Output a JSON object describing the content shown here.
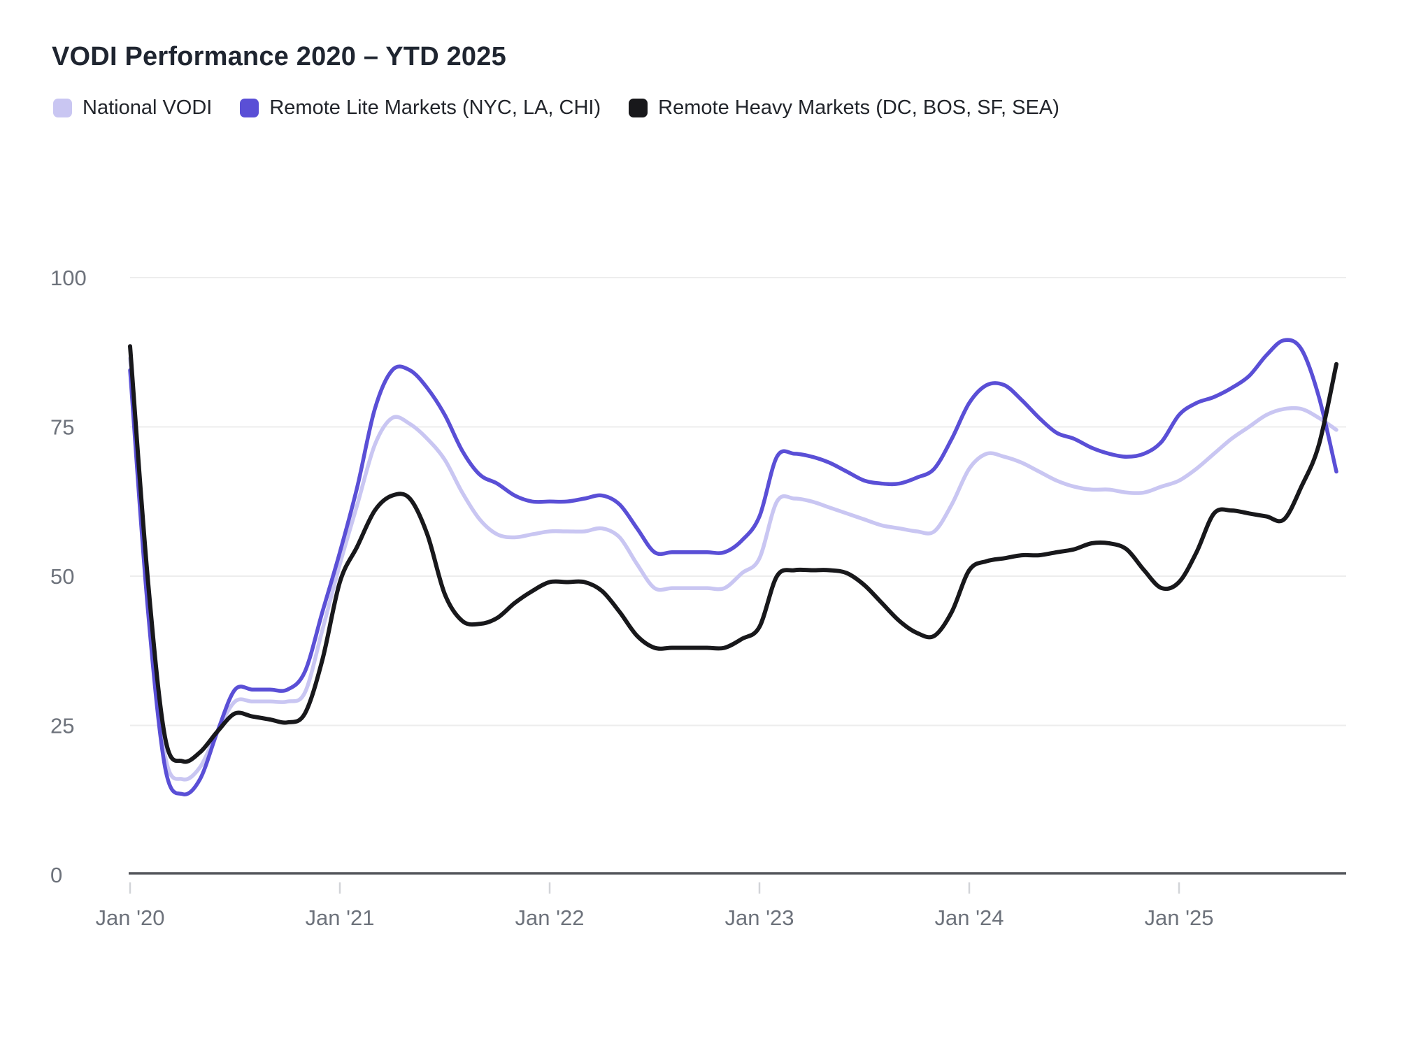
{
  "chart": {
    "title": "VODI Performance 2020 – YTD 2025"
  },
  "chart_data": {
    "type": "line",
    "title": "VODI Performance 2020 – YTD 2025",
    "x_axis": {
      "start": "Jan 2020",
      "end": "Oct 2025",
      "interval": "monthly",
      "tick_labels": [
        "Jan '20",
        "Jan '21",
        "Jan '22",
        "Jan '23",
        "Jan '24",
        "Jan '25"
      ]
    },
    "y_axis": {
      "range": [
        0,
        100
      ],
      "tick_labels": [
        100,
        75,
        50,
        25,
        0
      ],
      "grid": true
    },
    "legend_position": "top-left",
    "colors": {
      "grid": "#ededed",
      "axis_line": "#54565c",
      "tick_mark": "#d2d4d8",
      "axis_text": "#6d727b",
      "title_text": "#1f2530"
    },
    "series": [
      {
        "name": "National VODI",
        "color": "#c9c6f2",
        "values": [
          86.5,
          47,
          20,
          16,
          18,
          24,
          29,
          29,
          29,
          29,
          30.5,
          41,
          52,
          62,
          72,
          76.5,
          75.5,
          73,
          69.5,
          64,
          59.5,
          57,
          56.5,
          57,
          57.5,
          57.5,
          57.5,
          58,
          56.5,
          52,
          48,
          48,
          48,
          48,
          48,
          50.5,
          53,
          62.5,
          63,
          62.5,
          61.5,
          60.5,
          59.5,
          58.5,
          58,
          57.5,
          57.5,
          62,
          68,
          70.5,
          70,
          69,
          67.5,
          66,
          65,
          64.5,
          64.5,
          64,
          64,
          65,
          66,
          68,
          70.5,
          73,
          75,
          77,
          78,
          78,
          76.5,
          74.5
        ]
      },
      {
        "name": "Remote Lite Markets (NYC, LA, CHI)",
        "color": "#5a4fd6",
        "values": [
          84.5,
          45,
          18,
          13.5,
          16,
          24,
          31,
          31,
          31,
          31,
          34,
          44,
          54,
          65,
          78,
          84.5,
          84.5,
          81.5,
          77,
          71,
          67,
          65.5,
          63.5,
          62.5,
          62.5,
          62.5,
          63,
          63.5,
          62,
          58,
          54,
          54,
          54,
          54,
          54,
          56,
          60,
          70,
          70.5,
          70,
          69,
          67.5,
          66,
          65.5,
          65.5,
          66.5,
          68,
          73,
          79,
          82,
          82,
          79.5,
          76.5,
          74,
          73,
          71.5,
          70.5,
          70,
          70.5,
          72.5,
          77,
          79,
          80,
          81.5,
          83.5,
          87,
          89.5,
          88,
          80,
          67.5
        ]
      },
      {
        "name": "Remote Heavy Markets (DC, BOS, SF, SEA)",
        "color": "#18181b",
        "values": [
          88.5,
          50,
          23,
          19,
          20.5,
          24,
          27,
          26.5,
          26,
          25.5,
          27,
          36,
          49,
          55,
          61,
          63.5,
          63,
          57,
          47,
          42.5,
          42,
          43,
          45.5,
          47.5,
          49,
          49,
          49,
          47.5,
          44,
          40,
          38,
          38,
          38,
          38,
          38,
          39.5,
          41.5,
          50,
          51,
          51,
          51,
          50.5,
          48.5,
          45.5,
          42.5,
          40.5,
          40,
          44,
          51,
          52.5,
          53,
          53.5,
          53.5,
          54,
          54.5,
          55.5,
          55.5,
          54.5,
          51,
          48,
          49,
          54,
          60.5,
          61,
          60.5,
          60,
          59.5,
          65,
          72,
          85.5
        ]
      }
    ]
  }
}
